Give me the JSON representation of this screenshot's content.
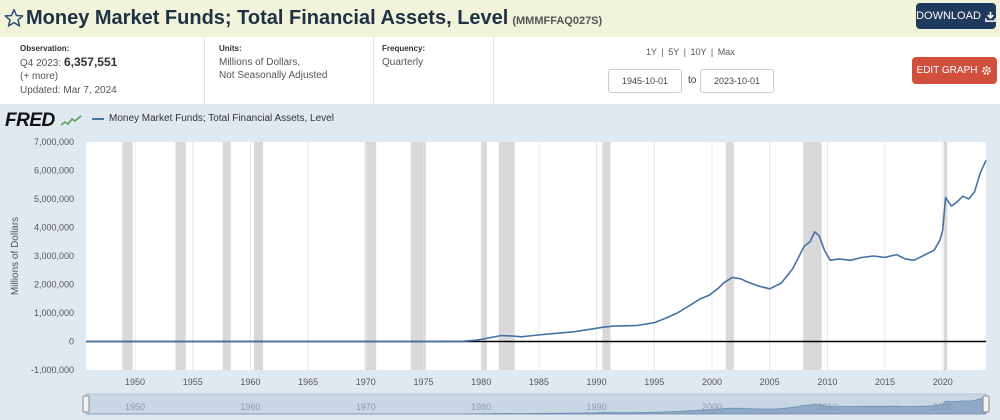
{
  "header": {
    "title": "Money Market Funds; Total Financial Assets, Level",
    "series_id": "(MMMFFAQ027S)",
    "download_label": "DOWNLOAD"
  },
  "info": {
    "observation_label": "Observation:",
    "observation_period": "Q4 2023:",
    "observation_value": "6,357,551",
    "more": "(+ more)",
    "updated": "Updated: Mar 7, 2024",
    "units_label": "Units:",
    "units_line1": "Millions of Dollars,",
    "units_line2": "Not Seasonally Adjusted",
    "frequency_label": "Frequency:",
    "frequency_value": "Quarterly",
    "range_links": [
      "1Y",
      "5Y",
      "10Y",
      "Max"
    ],
    "start_date": "1945-10-01",
    "to_label": "to",
    "end_date": "2023-10-01",
    "edit_label": "EDIT GRAPH"
  },
  "brand": {
    "logo_text": "FRED"
  },
  "colors": {
    "series": "#4572a7",
    "recession": "#d9d9d9",
    "plot_bg": "#ffffff",
    "chart_bg": "#e1e9f0",
    "download_bg": "#1f3a5c",
    "edit_bg": "#d14f3c"
  },
  "chart_data": {
    "type": "line",
    "legend_entry": "Money Market Funds; Total Financial Assets, Level",
    "ylabel": "Millions of Dollars",
    "ylim": [
      -1000000,
      7000000
    ],
    "yticks": [
      -1000000,
      0,
      1000000,
      2000000,
      3000000,
      4000000,
      5000000,
      6000000,
      7000000
    ],
    "ytick_labels": [
      "-1,000,000",
      "0",
      "1,000,000",
      "2,000,000",
      "3,000,000",
      "4,000,000",
      "5,000,000",
      "6,000,000",
      "7,000,000"
    ],
    "xlim": [
      1945.75,
      2023.75
    ],
    "xticks": [
      1950,
      1955,
      1960,
      1965,
      1970,
      1975,
      1980,
      1985,
      1990,
      1995,
      2000,
      2005,
      2010,
      2015,
      2020
    ],
    "grid": "vertical",
    "recessions": [
      [
        1948.9,
        1949.8
      ],
      [
        1953.5,
        1954.4
      ],
      [
        1957.6,
        1958.3
      ],
      [
        1960.3,
        1961.1
      ],
      [
        1969.9,
        1970.9
      ],
      [
        1973.9,
        1975.2
      ],
      [
        1980.0,
        1980.5
      ],
      [
        1981.5,
        1982.9
      ],
      [
        1990.5,
        1991.2
      ],
      [
        2001.2,
        2001.9
      ],
      [
        2007.9,
        2009.5
      ],
      [
        2020.1,
        2020.4
      ]
    ],
    "zero_line": true,
    "x": [
      1945.75,
      1975,
      1977,
      1978.5,
      1979.5,
      1980,
      1981,
      1981.75,
      1982.75,
      1983.5,
      1984.5,
      1986,
      1988,
      1989.5,
      1990.5,
      1991.5,
      1992.5,
      1993.5,
      1995,
      1996,
      1997,
      1998,
      1999,
      1999.75,
      2000.5,
      2001,
      2001.75,
      2002.5,
      2003,
      2004,
      2005,
      2006,
      2007,
      2008,
      2008.5,
      2008.9,
      2009.3,
      2009.75,
      2010.25,
      2011,
      2012,
      2013,
      2014,
      2015,
      2016,
      2016.75,
      2017.5,
      2018.5,
      2019.25,
      2019.75,
      2020,
      2020.25,
      2020.75,
      2021.25,
      2021.75,
      2022.25,
      2022.75,
      2023.25,
      2023.75
    ],
    "y": [
      0,
      0,
      3000,
      10000,
      45000,
      75000,
      150000,
      210000,
      190000,
      165000,
      210000,
      270000,
      340000,
      430000,
      500000,
      540000,
      550000,
      560000,
      660000,
      820000,
      1000000,
      1250000,
      1500000,
      1620000,
      1850000,
      2050000,
      2250000,
      2200000,
      2100000,
      1950000,
      1850000,
      2050000,
      2550000,
      3350000,
      3500000,
      3850000,
      3700000,
      3200000,
      2850000,
      2900000,
      2850000,
      2950000,
      3000000,
      2950000,
      3050000,
      2900000,
      2850000,
      3050000,
      3200000,
      3550000,
      3900000,
      5050000,
      4750000,
      4900000,
      5100000,
      5000000,
      5250000,
      5900000,
      6357551
    ]
  },
  "navigator": {
    "labels": [
      "1950",
      "1960",
      "1970",
      "1980",
      "1990",
      "2000",
      "2010",
      "2020"
    ]
  }
}
